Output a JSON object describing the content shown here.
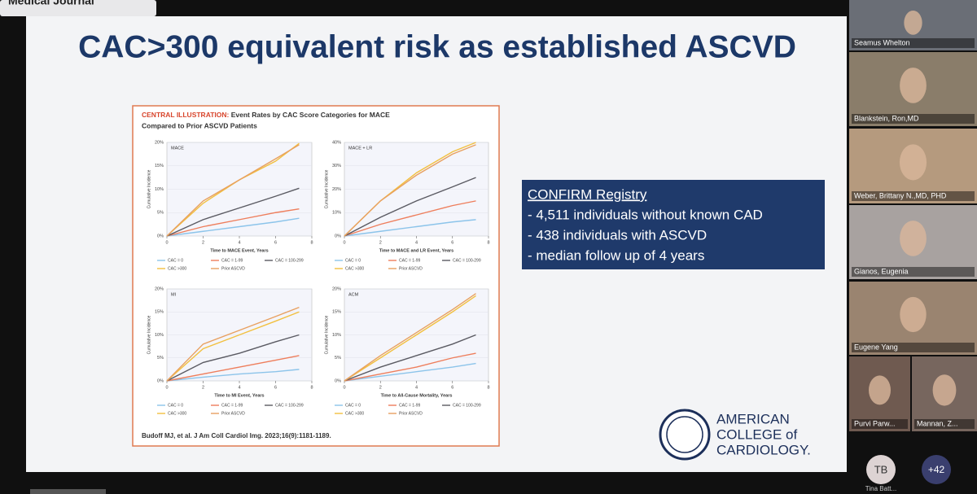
{
  "top_bar": {
    "label": "Medical Journal"
  },
  "slide": {
    "title": "CAC>300 equivalent risk as established ASCVD",
    "illustration": {
      "heading_label": "CENTRAL ILLUSTRATION:",
      "heading_line1": "Event Rates by CAC Score Categories for MACE",
      "heading_line2": "Compared to Prior ASCVD Patients",
      "panels": [
        {
          "label": "MACE",
          "y_label": "Cumulative Incidence",
          "x_label": "Time to MACE Event, Years",
          "x": [
            0,
            2,
            4,
            6,
            7.3
          ],
          "xlim": [
            0,
            8
          ],
          "xticks": [
            0,
            2,
            4,
            6,
            8
          ],
          "ylim": [
            0,
            20
          ],
          "yticks": [
            {
              "value": 0,
              "label": "0%"
            },
            {
              "value": 5,
              "label": "5%"
            },
            {
              "value": 10,
              "label": "10%"
            },
            {
              "value": 15,
              "label": "15%"
            },
            {
              "value": 20,
              "label": "20%"
            }
          ],
          "series": [
            {
              "name": "CAC = 0",
              "color": "#8cc4ea",
              "values": [
                0,
                1,
                2,
                3,
                3.8
              ]
            },
            {
              "name": "CAC = 1-99",
              "color": "#ee7e5c",
              "values": [
                0,
                2,
                3.5,
                5,
                5.8
              ]
            },
            {
              "name": "CAC = 100-299",
              "color": "#5a5a62",
              "values": [
                0,
                3.5,
                6,
                8.5,
                10.2
              ]
            },
            {
              "name": "CAC >300",
              "color": "#f2c040",
              "values": [
                0,
                7,
                12,
                16,
                19.8
              ]
            },
            {
              "name": "Prior ASCVD",
              "color": "#e8a060",
              "values": [
                0,
                7.5,
                12,
                16.5,
                19.5
              ]
            }
          ]
        },
        {
          "label": "MACE + LR",
          "y_label": "Cumulative Incidence",
          "x_label": "Time to MACE and LR Event, Years",
          "x": [
            0,
            2,
            4,
            6,
            7.3
          ],
          "xlim": [
            0,
            8
          ],
          "xticks": [
            0,
            2,
            4,
            6,
            8
          ],
          "ylim": [
            0,
            40
          ],
          "yticks": [
            {
              "value": 0,
              "label": "0%"
            },
            {
              "value": 10,
              "label": "10%"
            },
            {
              "value": 20,
              "label": "20%"
            },
            {
              "value": 30,
              "label": "30%"
            },
            {
              "value": 40,
              "label": "40%"
            }
          ],
          "series": [
            {
              "name": "CAC = 0",
              "color": "#8cc4ea",
              "values": [
                0,
                2,
                4,
                6,
                7
              ]
            },
            {
              "name": "CAC = 1-99",
              "color": "#ee7e5c",
              "values": [
                0,
                5,
                9,
                13,
                15
              ]
            },
            {
              "name": "CAC = 100-299",
              "color": "#5a5a62",
              "values": [
                0,
                8,
                15,
                21,
                25
              ]
            },
            {
              "name": "CAC >300",
              "color": "#f2c040",
              "values": [
                0,
                15,
                27,
                36,
                40
              ]
            },
            {
              "name": "Prior ASCVD",
              "color": "#e8a060",
              "values": [
                0,
                15,
                26,
                35,
                39
              ]
            }
          ]
        },
        {
          "label": "MI",
          "y_label": "Cumulative Incidence",
          "x_label": "Time to MI Event, Years",
          "x": [
            0,
            2,
            4,
            6,
            7.3
          ],
          "xlim": [
            0,
            8
          ],
          "xticks": [
            0,
            2,
            4,
            6,
            8
          ],
          "ylim": [
            0,
            20
          ],
          "yticks": [
            {
              "value": 0,
              "label": "0%"
            },
            {
              "value": 5,
              "label": "5%"
            },
            {
              "value": 10,
              "label": "10%"
            },
            {
              "value": 15,
              "label": "15%"
            },
            {
              "value": 20,
              "label": "20%"
            }
          ],
          "series": [
            {
              "name": "CAC = 0",
              "color": "#8cc4ea",
              "values": [
                0,
                0.8,
                1.5,
                2,
                2.5
              ]
            },
            {
              "name": "CAC = 1-99",
              "color": "#ee7e5c",
              "values": [
                0,
                1.5,
                3,
                4.5,
                5.5
              ]
            },
            {
              "name": "CAC = 100-299",
              "color": "#5a5a62",
              "values": [
                0,
                4,
                6,
                8.5,
                10
              ]
            },
            {
              "name": "CAC >300",
              "color": "#f2c040",
              "values": [
                0,
                7,
                10,
                13,
                15
              ]
            },
            {
              "name": "Prior ASCVD",
              "color": "#e8a060",
              "values": [
                0,
                8,
                11,
                14,
                16
              ]
            }
          ]
        },
        {
          "label": "ACM",
          "y_label": "Cumulative Incidence",
          "x_label": "Time to All-Cause Mortality, Years",
          "x": [
            0,
            2,
            4,
            6,
            7.3
          ],
          "xlim": [
            0,
            8
          ],
          "xticks": [
            0,
            2,
            4,
            6,
            8
          ],
          "ylim": [
            0,
            20
          ],
          "yticks": [
            {
              "value": 0,
              "label": "0%"
            },
            {
              "value": 5,
              "label": "5%"
            },
            {
              "value": 10,
              "label": "10%"
            },
            {
              "value": 15,
              "label": "15%"
            },
            {
              "value": 20,
              "label": "20%"
            }
          ],
          "series": [
            {
              "name": "CAC = 0",
              "color": "#8cc4ea",
              "values": [
                0,
                1,
                2,
                3,
                3.8
              ]
            },
            {
              "name": "CAC = 1-99",
              "color": "#ee7e5c",
              "values": [
                0,
                1.5,
                3,
                5,
                6
              ]
            },
            {
              "name": "CAC = 100-299",
              "color": "#5a5a62",
              "values": [
                0,
                3,
                5.5,
                8,
                10
              ]
            },
            {
              "name": "CAC >300",
              "color": "#f2c040",
              "values": [
                0,
                5,
                10,
                15,
                18.5
              ]
            },
            {
              "name": "Prior ASCVD",
              "color": "#e8a060",
              "values": [
                0,
                5.5,
                10.5,
                15.5,
                19
              ]
            }
          ]
        }
      ],
      "citation": "Budoff MJ, et al. J Am Coll Cardiol Img. 2023;16(9):1181-1189."
    },
    "registry": {
      "title": "CONFIRM Registry",
      "items": [
        "- 4,511 individuals without known CAD",
        "- 438 individuals with ASCVD",
        "- median follow up of 4 years"
      ]
    },
    "logo": {
      "lines": [
        "AMERICAN",
        "COLLEGE of",
        "CARDIOLOGY."
      ]
    }
  },
  "participants": [
    "Seamus Whelton",
    "Blankstein, Ron,MD",
    "Weber, Brittany N.,MD, PHD",
    "Gianos, Eugenia",
    "Eugene Yang",
    "Purvi Parw...",
    "Mannan, Z..."
  ],
  "overflow": {
    "initials": "TB",
    "name": "Tina Batt...",
    "more": "+42"
  }
}
